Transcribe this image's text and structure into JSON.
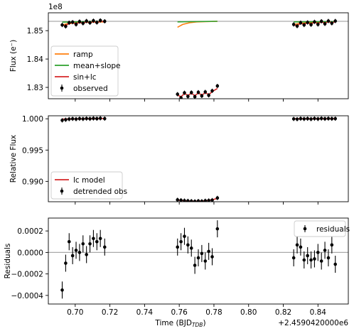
{
  "chart_data": [
    {
      "type": "line",
      "panel": "flux",
      "ylabel": "Flux (e⁻)",
      "offset_text": "1e8",
      "ylim": [
        1.826,
        1.8563
      ],
      "yticks": [
        1.83,
        1.84,
        1.85
      ],
      "ytick_labels": [
        "1.83",
        "1.84",
        "1.85"
      ],
      "xlim": [
        0.6845,
        0.8575
      ],
      "grid": false,
      "legend": "lower-left",
      "reference_line": 1.8533,
      "series": [
        {
          "name": "ramp",
          "color": "#ff7f0e",
          "segments": [
            {
              "x": [
                0.6925,
                0.695,
                0.7,
                0.705,
                0.71,
                0.717
              ],
              "y": [
                1.852,
                1.8524,
                1.8527,
                1.8529,
                1.853,
                1.8531
              ]
            },
            {
              "x": [
                0.759,
                0.762,
                0.766,
                0.77,
                0.775,
                0.782
              ],
              "y": [
                1.8512,
                1.8522,
                1.8528,
                1.8531,
                1.8532,
                1.8533
              ]
            },
            {
              "x": [
                0.826,
                0.83,
                0.835,
                0.84,
                0.845,
                0.85
              ],
              "y": [
                1.8522,
                1.8526,
                1.8528,
                1.853,
                1.8531,
                1.8531
              ]
            }
          ]
        },
        {
          "name": "mean+slope",
          "color": "#2ca02c",
          "segments": [
            {
              "x": [
                0.6925,
                0.717
              ],
              "y": [
                1.853,
                1.8533
              ]
            },
            {
              "x": [
                0.759,
                0.782
              ],
              "y": [
                1.8531,
                1.8533
              ]
            },
            {
              "x": [
                0.826,
                0.85
              ],
              "y": [
                1.8531,
                1.8532
              ]
            }
          ]
        },
        {
          "name": "sin+lc",
          "color": "#d62728",
          "segments": [
            {
              "x": [
                0.6925,
                0.6945,
                0.6965,
                0.6985,
                0.7005,
                0.7025,
                0.7045,
                0.7065,
                0.7085,
                0.7105,
                0.7125,
                0.7145,
                0.717
              ],
              "y": [
                1.8519,
                1.8518,
                1.8526,
                1.8528,
                1.8523,
                1.853,
                1.8525,
                1.8532,
                1.8527,
                1.8533,
                1.8528,
                1.8534,
                1.8531
              ]
            },
            {
              "x": [
                0.759,
                0.761,
                0.763,
                0.765,
                0.767,
                0.769,
                0.771,
                0.773,
                0.775,
                0.777,
                0.779,
                0.782
              ],
              "y": [
                1.8274,
                1.8266,
                1.8279,
                1.8271,
                1.828,
                1.827,
                1.8281,
                1.8272,
                1.8282,
                1.8274,
                1.8285,
                1.8296
              ]
            },
            {
              "x": [
                0.826,
                0.828,
                0.83,
                0.832,
                0.834,
                0.836,
                0.838,
                0.84,
                0.842,
                0.844,
                0.846,
                0.848,
                0.85
              ],
              "y": [
                1.852,
                1.8518,
                1.8526,
                1.8522,
                1.8528,
                1.8523,
                1.853,
                1.8524,
                1.8532,
                1.8525,
                1.8533,
                1.8527,
                1.8532
              ]
            }
          ]
        },
        {
          "name": "observed",
          "color": "#000000",
          "marker": "errorbar",
          "x": [
            0.6925,
            0.6945,
            0.6965,
            0.6985,
            0.7005,
            0.7025,
            0.7045,
            0.7065,
            0.7085,
            0.7105,
            0.7125,
            0.7145,
            0.717,
            0.759,
            0.761,
            0.763,
            0.765,
            0.767,
            0.769,
            0.771,
            0.773,
            0.775,
            0.777,
            0.779,
            0.782,
            0.826,
            0.828,
            0.83,
            0.832,
            0.834,
            0.836,
            0.838,
            0.84,
            0.842,
            0.844,
            0.846,
            0.848,
            0.85
          ],
          "y": [
            1.852,
            1.8515,
            1.8528,
            1.853,
            1.8522,
            1.8532,
            1.8526,
            1.8534,
            1.8528,
            1.8535,
            1.8529,
            1.8536,
            1.8533,
            1.8276,
            1.8263,
            1.8281,
            1.8268,
            1.8282,
            1.8267,
            1.8283,
            1.827,
            1.8284,
            1.8272,
            1.8288,
            1.8305,
            1.8522,
            1.8516,
            1.8528,
            1.852,
            1.8529,
            1.8521,
            1.8531,
            1.8522,
            1.8533,
            1.8524,
            1.8534,
            1.8526,
            1.8534
          ]
        }
      ]
    },
    {
      "type": "line",
      "panel": "relative",
      "ylabel": "Relative Flux",
      "ylim": [
        0.98675,
        1.00048
      ],
      "yticks": [
        0.99,
        0.995,
        1.0
      ],
      "ytick_labels": [
        "0.990",
        "0.995",
        "1.000"
      ],
      "xlim": [
        0.6845,
        0.8575
      ],
      "grid": false,
      "legend": "lower-left",
      "series": [
        {
          "name": "lc model",
          "color": "#d62728",
          "segments": [
            {
              "x": [
                0.6925,
                0.717
              ],
              "y": [
                0.99995,
                1.00005
              ]
            },
            {
              "x": [
                0.759,
                0.761,
                0.763,
                0.765,
                0.767,
                0.769,
                0.771,
                0.773,
                0.775,
                0.777,
                0.779,
                0.782
              ],
              "y": [
                0.987,
                0.98696,
                0.9869,
                0.98686,
                0.98684,
                0.98683,
                0.98684,
                0.98686,
                0.9869,
                0.98696,
                0.98705,
                0.9873
              ]
            },
            {
              "x": [
                0.826,
                0.85
              ],
              "y": [
                1.0,
                1.0
              ]
            }
          ]
        },
        {
          "name": "detrended obs",
          "color": "#000000",
          "marker": "errorbar",
          "x": [
            0.6925,
            0.6945,
            0.6965,
            0.6985,
            0.7005,
            0.7025,
            0.7045,
            0.7065,
            0.7085,
            0.7105,
            0.7125,
            0.7145,
            0.717,
            0.759,
            0.761,
            0.763,
            0.765,
            0.767,
            0.769,
            0.771,
            0.773,
            0.775,
            0.777,
            0.779,
            0.782,
            0.826,
            0.828,
            0.83,
            0.832,
            0.834,
            0.836,
            0.838,
            0.84,
            0.842,
            0.844,
            0.846,
            0.848,
            0.85
          ],
          "y": [
            0.99975,
            0.99985,
            0.99995,
            1.0,
            0.99995,
            1.00002,
            0.99998,
            1.00004,
            1.0,
            1.00006,
            1.00002,
            1.00008,
            1.00003,
            0.98705,
            0.98698,
            0.98692,
            0.98688,
            0.98684,
            0.9868,
            0.98686,
            0.98682,
            0.9869,
            0.98694,
            0.987,
            0.98735,
            0.99998,
            0.99994,
            1.00003,
            0.99998,
            1.00002,
            0.99996,
            1.00004,
            0.99998,
            1.00005,
            1.0,
            1.00004,
            1.00001,
            1.00002
          ]
        }
      ]
    },
    {
      "type": "scatter",
      "panel": "residuals",
      "ylabel": "Residuals",
      "xlabel": "Time (BJD",
      "xlabel_sub": "TDB",
      "xlabel_end": ")",
      "offset_text": "+2.4590420000e6",
      "ylim": [
        -0.00048,
        0.00032
      ],
      "yticks": [
        -0.0004,
        -0.0002,
        0.0,
        0.0002
      ],
      "ytick_labels": [
        "−0.0004",
        "−0.0002",
        "0.0000",
        "0.0002"
      ],
      "xlim": [
        0.6845,
        0.8575
      ],
      "xticks": [
        0.7,
        0.72,
        0.74,
        0.76,
        0.78,
        0.8,
        0.82,
        0.84
      ],
      "xtick_labels": [
        "0.70",
        "0.72",
        "0.74",
        "0.76",
        "0.78",
        "0.80",
        "0.82",
        "0.84"
      ],
      "grid": false,
      "legend": "top-right",
      "reference_line": 0,
      "series": [
        {
          "name": "residuals",
          "color": "#000000",
          "marker": "errorbar",
          "x": [
            0.6925,
            0.6945,
            0.6965,
            0.6985,
            0.7005,
            0.7025,
            0.7045,
            0.7065,
            0.7085,
            0.7105,
            0.7125,
            0.7145,
            0.717,
            0.759,
            0.761,
            0.763,
            0.765,
            0.767,
            0.769,
            0.771,
            0.773,
            0.775,
            0.777,
            0.779,
            0.782,
            0.826,
            0.828,
            0.83,
            0.832,
            0.834,
            0.836,
            0.838,
            0.84,
            0.842,
            0.844,
            0.846,
            0.848,
            0.85
          ],
          "y": [
            -0.00035,
            -0.0001,
            0.0001,
            -3e-05,
            2e-05,
            0.0,
            8e-05,
            -2e-05,
            8e-05,
            0.00013,
            0.0001,
            0.00013,
            5e-05,
            5e-05,
            0.0001,
            0.00015,
            7e-05,
            4e-05,
            -0.00012,
            -5e-05,
            -1e-05,
            -8e-05,
            1e-05,
            -4e-05,
            0.00022,
            -5e-05,
            7e-05,
            5e-05,
            -7e-05,
            -3e-05,
            -7e-05,
            -6e-05,
            0.0,
            -8e-05,
            2e-05,
            -5e-05,
            7e-05,
            -0.00011
          ]
        }
      ]
    }
  ]
}
